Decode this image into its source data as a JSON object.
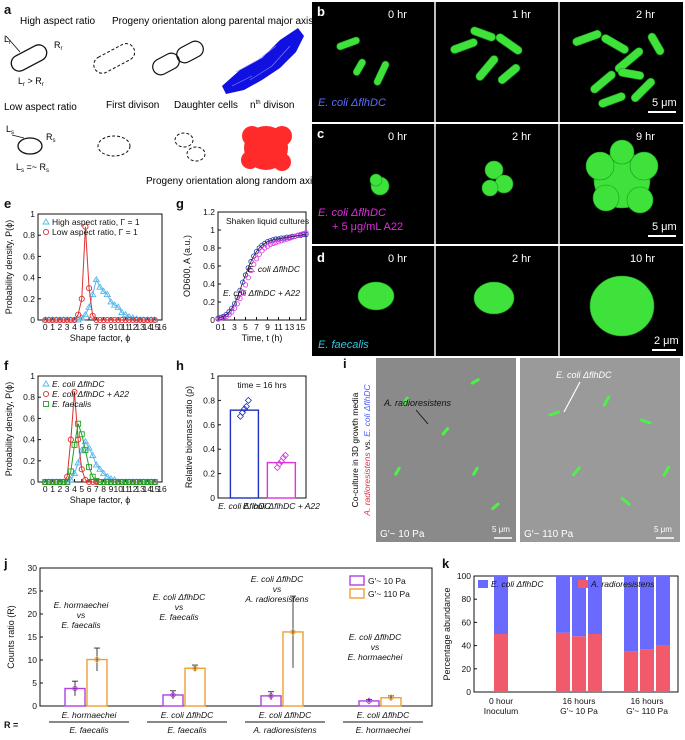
{
  "panel_labels": {
    "a": "a",
    "b": "b",
    "c": "c",
    "d": "d",
    "e": "e",
    "f": "f",
    "g": "g",
    "h": "h",
    "i": "i",
    "j": "j",
    "k": "k"
  },
  "panel_a": {
    "high_ar": "High aspect ratio",
    "Lr": "L",
    "Lr_sub": "r",
    "Rr": "R",
    "Rr_sub": "r",
    "rel_high": "L",
    "rel_high_b": " > R",
    "progeny_major": "Progeny orientation along parental major axis",
    "low_ar": "Low aspect ratio",
    "Ls": "L",
    "Ls_sub": "s",
    "Rs": "R",
    "Rs_sub": "s",
    "rel_low": "L",
    "rel_low_b": " =~ R",
    "first_div": "First divison",
    "daughter": "Daughter cells",
    "nth": "n",
    "nth_sup": "th",
    "nth_b": " divison",
    "progeny_random": "Progeny orientation along random axis",
    "colors": {
      "high": "#1010e0",
      "low": "#ff2a2a"
    }
  },
  "panel_b": {
    "times": [
      "0 hr",
      "1 hr",
      "2 hr"
    ],
    "strain": "E. coli ΔflhDC",
    "scale": "5 μm",
    "label_color": "#5a6cff"
  },
  "panel_c": {
    "times": [
      "0 hr",
      "2 hr",
      "9 hr"
    ],
    "strain": "E. coli ΔflhDC",
    "treat": "+ 5 μg/mL A22",
    "scale": "5 μm",
    "label_color": "#e02ee0"
  },
  "panel_d": {
    "times": [
      "0 hr",
      "2 hr",
      "10 hr"
    ],
    "strain": "E. faecalis",
    "scale": "2 μm",
    "label_color": "#2ec9e0"
  },
  "panel_i": {
    "side_label_1": "Co-culture in 3D growth media",
    "side_label_2a": "A. radioresistens",
    "side_label_2b": " vs. ",
    "side_label_2c": "E. coli ΔflhDC",
    "left_annot": "A. radioresistens",
    "right_annot": "E. coli ΔflhDC",
    "left_mod": "G′~ 10 Pa",
    "right_mod": "G′~ 110 Pa",
    "scale": "5 μm"
  },
  "chart_data": [
    {
      "id": "e",
      "type": "line",
      "xlabel": "Shape factor, ϕ",
      "ylabel": "Probability density, P(ϕ)",
      "xlim": [
        -1,
        16
      ],
      "ylim": [
        0,
        1
      ],
      "xticks": [
        "0",
        "1",
        "2",
        "3",
        "4",
        "5",
        "6",
        "7",
        "8",
        "9",
        "10",
        "11",
        "12",
        "13",
        "14",
        "15",
        "16"
      ],
      "yticks": [
        "0",
        "0.2",
        "0.4",
        "0.6",
        "0.8",
        "1"
      ],
      "legend": [
        "High aspect ratio, Γ = 1",
        "Low aspect ratio, Γ = 1"
      ],
      "series": [
        {
          "name": "High aspect ratio, Γ = 1",
          "color": "#55b8ee",
          "marker": "triangle",
          "x": [
            0,
            0.5,
            1,
            1.5,
            2,
            2.5,
            3,
            3.5,
            4,
            4.5,
            5,
            5.5,
            6,
            6.5,
            7,
            7.5,
            8,
            8.5,
            9,
            9.5,
            10,
            10.5,
            11,
            11.5,
            12,
            12.5,
            13,
            13.5,
            14,
            14.5,
            15
          ],
          "y": [
            0,
            0,
            0,
            0,
            0,
            0,
            0,
            0,
            0,
            0,
            0.02,
            0.05,
            0.12,
            0.24,
            0.38,
            0.31,
            0.27,
            0.24,
            0.17,
            0.14,
            0.12,
            0.07,
            0.05,
            0.03,
            0.02,
            0.01,
            0,
            0,
            0,
            0,
            0
          ]
        },
        {
          "name": "Low aspect ratio, Γ = 1",
          "color": "#e03030",
          "marker": "circle",
          "x": [
            0,
            0.5,
            1,
            1.5,
            2,
            2.5,
            3,
            3.5,
            4,
            4.5,
            5,
            5.5,
            6,
            6.5,
            7,
            7.5,
            8,
            8.5,
            9,
            9.5,
            10,
            10.5,
            11,
            11.5,
            12,
            12.5,
            13,
            13.5,
            14,
            14.5,
            15
          ],
          "y": [
            0,
            0,
            0,
            0,
            0,
            0,
            0,
            0,
            0,
            0.05,
            0.2,
            0.88,
            0.3,
            0.04,
            0,
            0,
            0,
            0,
            0,
            0,
            0,
            0,
            0,
            0,
            0,
            0,
            0,
            0,
            0,
            0,
            0
          ]
        }
      ]
    },
    {
      "id": "f",
      "type": "line",
      "xlabel": "Shape factor, ϕ",
      "ylabel": "Probability density, P(ϕ)",
      "xlim": [
        -1,
        16
      ],
      "ylim": [
        0,
        1
      ],
      "xticks": [
        "0",
        "1",
        "2",
        "3",
        "4",
        "5",
        "6",
        "7",
        "8",
        "9",
        "10",
        "11",
        "12",
        "13",
        "14",
        "15",
        "16"
      ],
      "yticks": [
        "0",
        "0.2",
        "0.4",
        "0.6",
        "0.8",
        "1"
      ],
      "legend": [
        "E. coli ΔflhDC",
        "E. coli ΔflhDC + A22",
        "E. faecalis"
      ],
      "series": [
        {
          "name": "E. coli ΔflhDC",
          "color": "#55b8ee",
          "marker": "triangle",
          "x": [
            0,
            0.5,
            1,
            1.5,
            2,
            2.5,
            3,
            3.5,
            4,
            4.5,
            5,
            5.5,
            6,
            6.5,
            7,
            7.5,
            8,
            8.5,
            9,
            9.5,
            10,
            10.5,
            11,
            11.5,
            12,
            12.5,
            13,
            13.5,
            14,
            14.5,
            15
          ],
          "y": [
            0,
            0,
            0,
            0,
            0,
            0,
            0,
            0.02,
            0.08,
            0.18,
            0.3,
            0.38,
            0.32,
            0.25,
            0.16,
            0.12,
            0.08,
            0.05,
            0.03,
            0.02,
            0,
            0,
            0,
            0,
            0,
            0,
            0,
            0,
            0,
            0,
            0
          ]
        },
        {
          "name": "E. coli ΔflhDC + A22",
          "color": "#e03030",
          "marker": "circle",
          "x": [
            0,
            0.5,
            1,
            1.5,
            2,
            2.5,
            3,
            3.5,
            4,
            4.5,
            5,
            5.5,
            6,
            6.5,
            7,
            7.5,
            8,
            8.5,
            9,
            9.5,
            10,
            10.5,
            11,
            11.5,
            12,
            12.5,
            13,
            13.5,
            14,
            14.5,
            15
          ],
          "y": [
            0,
            0,
            0,
            0,
            0,
            0,
            0.05,
            0.4,
            0.85,
            0.4,
            0.12,
            0.02,
            0,
            0,
            0,
            0,
            0,
            0,
            0,
            0,
            0,
            0,
            0,
            0,
            0,
            0,
            0,
            0,
            0,
            0,
            0
          ]
        },
        {
          "name": "E. faecalis",
          "color": "#22a022",
          "marker": "square",
          "x": [
            0,
            0.5,
            1,
            1.5,
            2,
            2.5,
            3,
            3.5,
            4,
            4.5,
            5,
            5.5,
            6,
            6.5,
            7,
            7.5,
            8,
            8.5,
            9,
            9.5,
            10,
            10.5,
            11,
            11.5,
            12,
            12.5,
            13,
            13.5,
            14,
            14.5,
            15
          ],
          "y": [
            0,
            0,
            0,
            0,
            0,
            0,
            0,
            0.1,
            0.35,
            0.55,
            0.45,
            0.3,
            0.14,
            0.05,
            0.01,
            0,
            0,
            0,
            0,
            0,
            0,
            0,
            0,
            0,
            0,
            0,
            0,
            0,
            0,
            0,
            0
          ]
        }
      ]
    },
    {
      "id": "g",
      "type": "scatter",
      "xlabel": "Time, t (h)",
      "ylabel": "OD600, A (a.u.)",
      "xlim": [
        0,
        16
      ],
      "ylim": [
        0,
        1.2
      ],
      "xticks": [
        "0",
        "1",
        "3",
        "5",
        "7",
        "9",
        "11",
        "13",
        "15"
      ],
      "yticks": [
        "0",
        "0.2",
        "0.4",
        "0.6",
        "0.8",
        "1",
        "1.2"
      ],
      "annotation": "Shaken liquid cultures",
      "series": [
        {
          "name": "E. coli ΔflhDC",
          "color": "#2030c0",
          "x": [
            0,
            0.5,
            1,
            1.5,
            2,
            2.5,
            3,
            3.5,
            4,
            4.5,
            5,
            5.5,
            6,
            6.5,
            7,
            7.5,
            8,
            8.5,
            9,
            9.5,
            10,
            10.5,
            11,
            11.5,
            12,
            12.5,
            13,
            13.5,
            14,
            14.5,
            15,
            15.5,
            16
          ],
          "y": [
            0.02,
            0.03,
            0.04,
            0.06,
            0.09,
            0.13,
            0.18,
            0.25,
            0.33,
            0.42,
            0.5,
            0.58,
            0.65,
            0.71,
            0.76,
            0.8,
            0.83,
            0.85,
            0.87,
            0.88,
            0.89,
            0.9,
            0.9,
            0.91,
            0.91,
            0.92,
            0.92,
            0.93,
            0.93,
            0.94,
            0.94,
            0.95,
            0.95
          ]
        },
        {
          "name": "E. coli ΔflhDC + A22",
          "color": "#e030e0",
          "x": [
            0,
            0.5,
            1,
            1.5,
            2,
            2.5,
            3,
            3.5,
            4,
            4.5,
            5,
            5.5,
            6,
            6.5,
            7,
            7.5,
            8,
            8.5,
            9,
            9.5,
            10,
            10.5,
            11,
            11.5,
            12,
            12.5,
            13,
            13.5,
            14,
            14.5,
            15,
            15.5,
            16
          ],
          "y": [
            0.01,
            0.02,
            0.03,
            0.04,
            0.06,
            0.09,
            0.13,
            0.18,
            0.24,
            0.31,
            0.39,
            0.47,
            0.55,
            0.62,
            0.68,
            0.73,
            0.77,
            0.8,
            0.82,
            0.84,
            0.85,
            0.86,
            0.87,
            0.88,
            0.89,
            0.9,
            0.91,
            0.92,
            0.93,
            0.94,
            0.95,
            0.96,
            0.97
          ]
        }
      ]
    },
    {
      "id": "h",
      "type": "bar",
      "ylabel": "Relative biomass ratio (ρ)",
      "ylim": [
        0,
        1
      ],
      "yticks": [
        "0",
        "0.2",
        "0.4",
        "0.6",
        "0.8",
        "1"
      ],
      "annotation": "time = 16 hrs",
      "categories": [
        "E. coli ΔflhDC",
        "E. coli ΔflhDC + A22"
      ],
      "values": [
        0.72,
        0.29
      ],
      "colors": [
        "#2030c0",
        "#e030e0"
      ],
      "points": [
        [
          0.67,
          0.7,
          0.73,
          0.75,
          0.8
        ],
        [
          0.25,
          0.28,
          0.3,
          0.33,
          0.35
        ]
      ]
    },
    {
      "id": "j",
      "type": "bar",
      "ylabel": "Counts ratio (R)",
      "ylim": [
        0,
        30
      ],
      "yticks": [
        "0",
        "5",
        "10",
        "15",
        "20",
        "25",
        "30"
      ],
      "legend": [
        "G′~ 10 Pa",
        "G′~ 110 Pa"
      ],
      "series": [
        {
          "name": "G′~ 10 Pa",
          "color": "#b040e0",
          "values": [
            3.8,
            2.4,
            2.2,
            1.1
          ],
          "err": [
            1.6,
            0.9,
            0.9,
            0.3
          ]
        },
        {
          "name": "G′~ 110 Pa",
          "color": "#f0a030",
          "values": [
            10.1,
            8.2,
            16.1,
            1.8
          ],
          "err": [
            2.5,
            0.7,
            7.8,
            0.4
          ]
        }
      ],
      "categories": [
        {
          "num": "E. hormaechei",
          "den": "E. faecalis",
          "vs_a": "E. hormaechei",
          "vs_b": "E. faecalis"
        },
        {
          "num": "E. coli ΔflhDC",
          "den": "E. faecalis",
          "vs_a": "E. coli ΔflhDC",
          "vs_b": "E. faecalis"
        },
        {
          "num": "E. coli ΔflhDC",
          "den": "A. radioresistens",
          "vs_a": "E. coli ΔflhDC",
          "vs_b": "A. radioresistens"
        },
        {
          "num": "E. coli ΔflhDC",
          "den": "E. hormaechei",
          "vs_a": "E. coli ΔflhDC",
          "vs_b": "E. hormaechei"
        }
      ],
      "vs": "vs",
      "R_label": "R ="
    },
    {
      "id": "k",
      "type": "bar",
      "ylabel": "Percentage abundance",
      "ylim": [
        0,
        100
      ],
      "yticks": [
        "0",
        "20",
        "40",
        "60",
        "80",
        "100"
      ],
      "legend": [
        "E. coli ΔflhDC",
        "A. radioresistens"
      ],
      "colors": [
        "#6a6aff",
        "#f05a6a"
      ],
      "groups": [
        {
          "label1": "0 hour",
          "label2": "Inoculum",
          "red": [
            50
          ]
        },
        {
          "label1": "16 hours",
          "label2": "G′~ 10 Pa",
          "red": [
            51,
            48,
            50
          ]
        },
        {
          "label1": "16 hours",
          "label2": "G′~ 110 Pa",
          "red": [
            35,
            37,
            40
          ]
        }
      ]
    }
  ]
}
